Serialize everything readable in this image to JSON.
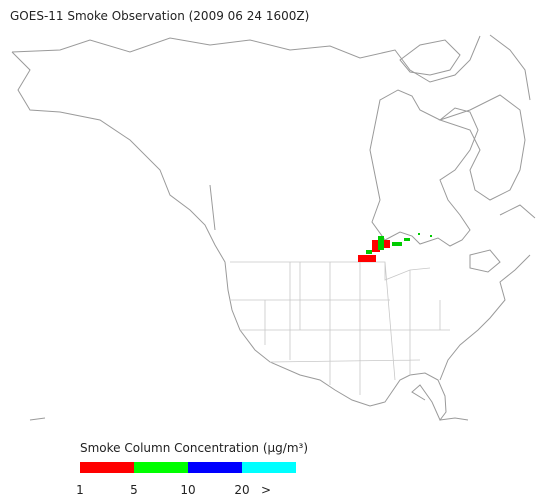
{
  "title": "GOES-11 Smoke Observation (2009 06 24  1600Z)",
  "legend": {
    "title": "Smoke Column Concentration (μg/m³)",
    "colors": [
      "#ff0000",
      "#00ff00",
      "#0000ff",
      "#00ffff"
    ],
    "labels": [
      "1",
      "5",
      "10",
      "20",
      ">"
    ]
  }
}
